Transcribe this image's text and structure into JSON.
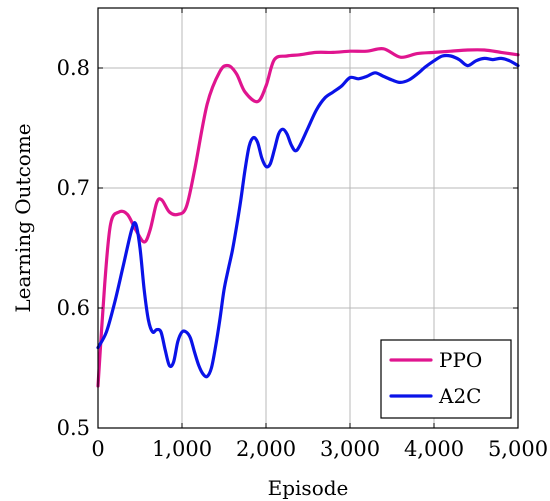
{
  "chart_data": {
    "type": "line",
    "title": "",
    "xlabel": "Episode",
    "ylabel": "Learning Outcome",
    "xlim": [
      0,
      5000
    ],
    "ylim": [
      0.5,
      0.85
    ],
    "x_ticks": [
      0,
      1000,
      2000,
      3000,
      4000,
      5000
    ],
    "x_tick_labels": [
      "0",
      "1,000",
      "2,000",
      "3,000",
      "4,000",
      "5,000"
    ],
    "y_ticks": [
      0.5,
      0.6,
      0.7,
      0.8
    ],
    "y_tick_labels": [
      "0.5",
      "0.6",
      "0.7",
      "0.8"
    ],
    "grid": true,
    "legend_position": "bottom-right",
    "series": [
      {
        "name": "PPO",
        "color": "#e0158f",
        "x": [
          0,
          80,
          150,
          250,
          350,
          450,
          550,
          620,
          700,
          760,
          850,
          950,
          1050,
          1150,
          1300,
          1450,
          1550,
          1650,
          1750,
          1900,
          2000,
          2100,
          2250,
          2400,
          2600,
          2800,
          3000,
          3200,
          3400,
          3600,
          3800,
          4000,
          4200,
          4400,
          4600,
          4800,
          5000
        ],
        "y": [
          0.535,
          0.62,
          0.67,
          0.68,
          0.678,
          0.665,
          0.655,
          0.665,
          0.688,
          0.69,
          0.68,
          0.678,
          0.684,
          0.715,
          0.77,
          0.797,
          0.802,
          0.795,
          0.78,
          0.772,
          0.785,
          0.807,
          0.81,
          0.811,
          0.813,
          0.813,
          0.814,
          0.814,
          0.816,
          0.809,
          0.812,
          0.813,
          0.814,
          0.815,
          0.815,
          0.813,
          0.811
        ]
      },
      {
        "name": "A2C",
        "color": "#0a13e8",
        "x": [
          0,
          100,
          200,
          300,
          400,
          450,
          500,
          550,
          600,
          650,
          700,
          750,
          800,
          850,
          900,
          950,
          1000,
          1050,
          1100,
          1150,
          1200,
          1250,
          1300,
          1350,
          1400,
          1450,
          1500,
          1550,
          1600,
          1650,
          1700,
          1750,
          1800,
          1850,
          1900,
          1950,
          2000,
          2050,
          2100,
          2150,
          2200,
          2250,
          2300,
          2350,
          2400,
          2500,
          2600,
          2700,
          2800,
          2900,
          3000,
          3100,
          3200,
          3300,
          3400,
          3500,
          3600,
          3700,
          3800,
          3900,
          4000,
          4100,
          4200,
          4300,
          4400,
          4500,
          4600,
          4700,
          4800,
          4900,
          5000
        ],
        "y": [
          0.567,
          0.58,
          0.605,
          0.635,
          0.665,
          0.67,
          0.65,
          0.615,
          0.59,
          0.58,
          0.582,
          0.58,
          0.565,
          0.552,
          0.555,
          0.572,
          0.58,
          0.58,
          0.575,
          0.563,
          0.552,
          0.545,
          0.543,
          0.55,
          0.568,
          0.59,
          0.615,
          0.632,
          0.648,
          0.668,
          0.69,
          0.715,
          0.735,
          0.742,
          0.738,
          0.725,
          0.718,
          0.72,
          0.732,
          0.745,
          0.749,
          0.745,
          0.736,
          0.731,
          0.735,
          0.75,
          0.765,
          0.775,
          0.78,
          0.785,
          0.792,
          0.791,
          0.793,
          0.796,
          0.793,
          0.79,
          0.788,
          0.79,
          0.795,
          0.801,
          0.806,
          0.81,
          0.81,
          0.807,
          0.802,
          0.806,
          0.808,
          0.807,
          0.808,
          0.806,
          0.802
        ]
      }
    ]
  }
}
